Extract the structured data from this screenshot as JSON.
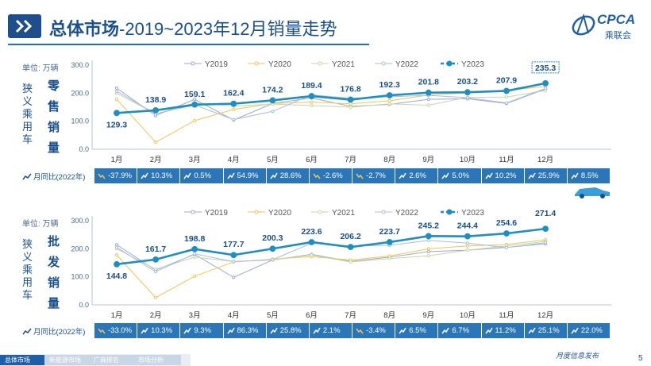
{
  "header": {
    "title_bold": "总体市场",
    "title_rest": "-2019~2023年12月销量走势",
    "logo_text": "CPCA",
    "logo_sub": "乘联会"
  },
  "footer": {
    "tabs": [
      "总体市场",
      "新能源市场",
      "厂商排名",
      "市场分析"
    ],
    "page": "5",
    "signature": "月度信息发布"
  },
  "colors": {
    "y2019": "#9aa7d6",
    "y2020": "#f2c552",
    "y2021": "#c7d7a6",
    "y2022": "#a8bde0",
    "y2023": "#1f8ec2",
    "band": "#2a76b8",
    "title": "#1a4f8f"
  },
  "chart_data": [
    {
      "type": "line",
      "name_label": "零售销量",
      "side_label": "狭义乘用车",
      "unit_label": "单位: 万辆",
      "categories": [
        "1月",
        "2月",
        "3月",
        "4月",
        "5月",
        "6月",
        "7月",
        "8月",
        "9月",
        "10月",
        "11月",
        "12月"
      ],
      "ylim": [
        0,
        300
      ],
      "yticks": [
        "0.0",
        "100.0",
        "200.0",
        "300.0"
      ],
      "legend_position": "top",
      "series": [
        {
          "name": "Y2019",
          "values": [
            218,
            120,
            178,
            104,
            163,
            183,
            153,
            160,
            178,
            180,
            163,
            215
          ]
        },
        {
          "name": "Y2020",
          "values": [
            178,
            25,
            102,
            142,
            163,
            168,
            162,
            173,
            193,
            201,
            209,
            224
          ]
        },
        {
          "name": "Y2021",
          "values": [
            200,
            126,
            165,
            154,
            161,
            156,
            150,
            162,
            157,
            185,
            186,
            209
          ]
        },
        {
          "name": "Y2022",
          "values": [
            207,
            126,
            158,
            106,
            135,
            194,
            182,
            187,
            192,
            184,
            165,
            217
          ]
        },
        {
          "name": "Y2023",
          "values": [
            129.3,
            138.9,
            159.1,
            162.4,
            174.2,
            189.4,
            176.8,
            192.3,
            201.8,
            203.2,
            207.9,
            235.3
          ]
        }
      ],
      "data_labels": [
        "129.3",
        "138.9",
        "159.1",
        "162.4",
        "174.2",
        "189.4",
        "176.8",
        "192.3",
        "201.8",
        "203.2",
        "207.9",
        "235.3"
      ],
      "yoy_label": "月同比(2022年)",
      "yoy": [
        "-37.9%",
        "10.3%",
        "0.5%",
        "54.9%",
        "28.6%",
        "-2.6%",
        "-2.7%",
        "2.6%",
        "5.0%",
        "10.2%",
        "25.9%",
        "8.5%"
      ]
    },
    {
      "type": "line",
      "name_label": "批发销量",
      "side_label": "狭义乘用车",
      "unit_label": "单位: 万辆",
      "categories": [
        "1月",
        "2月",
        "3月",
        "4月",
        "5月",
        "6月",
        "7月",
        "8月",
        "9月",
        "10月",
        "11月",
        "12月"
      ],
      "ylim": [
        0,
        300
      ],
      "yticks": [
        "0.0",
        "100.0",
        "200.0",
        "300.0"
      ],
      "legend_position": "top",
      "series": [
        {
          "name": "Y2019",
          "values": [
            214,
            124,
            180,
            98,
            160,
            180,
            155,
            170,
            190,
            195,
            205,
            218
          ]
        },
        {
          "name": "Y2020",
          "values": [
            178,
            26,
            102,
            153,
            163,
            172,
            160,
            174,
            200,
            210,
            215,
            232
          ]
        },
        {
          "name": "Y2021",
          "values": [
            200,
            127,
            170,
            155,
            160,
            178,
            153,
            165,
            175,
            195,
            210,
            226
          ]
        },
        {
          "name": "Y2022",
          "values": [
            205,
            118,
            182,
            154,
            161,
            220,
            210,
            212,
            230,
            220,
            204,
            222
          ]
        },
        {
          "name": "Y2023",
          "values": [
            144.8,
            161.7,
            198.8,
            177.7,
            200.3,
            223.6,
            206.2,
            223.7,
            245.2,
            244.4,
            254.6,
            271.4
          ]
        }
      ],
      "data_labels": [
        "144.8",
        "161.7",
        "198.8",
        "177.7",
        "200.3",
        "223.6",
        "206.2",
        "223.7",
        "245.2",
        "244.4",
        "254.6",
        "271.4"
      ],
      "yoy_label": "月同比(2022年)",
      "yoy": [
        "-33.0%",
        "10.3%",
        "9.3%",
        "86.3%",
        "25.8%",
        "2.1%",
        "-3.4%",
        "6.5%",
        "6.7%",
        "11.2%",
        "25.1%",
        "22.0%"
      ]
    }
  ]
}
